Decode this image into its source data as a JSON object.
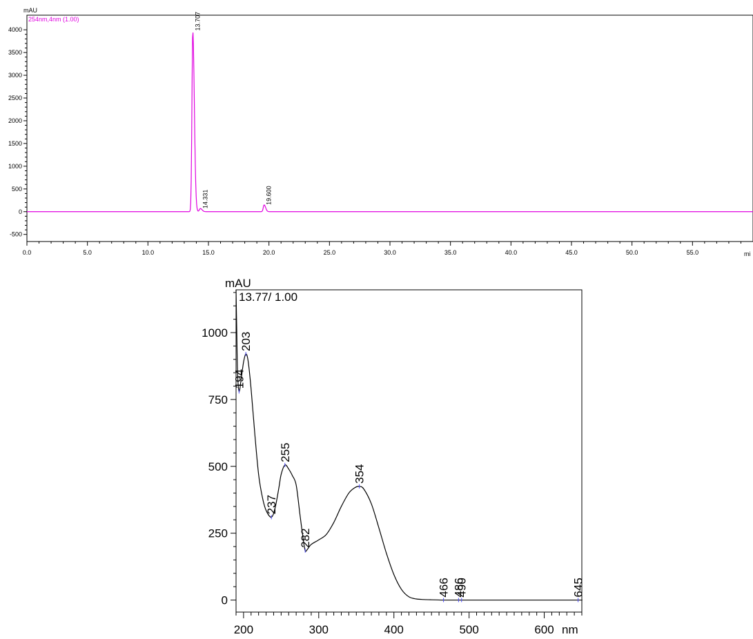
{
  "chart_data": [
    {
      "type": "line",
      "ylabel": "mAU",
      "xlabel": "mi",
      "channel_label": "254nm,4nm (1.00)",
      "xlim": [
        0,
        60
      ],
      "ylim": [
        -550,
        4200
      ],
      "x_ticks": [
        "0.0",
        "5.0",
        "10.0",
        "15.0",
        "20.0",
        "25.0",
        "30.0",
        "35.0",
        "40.0",
        "45.0",
        "50.0",
        "55.0"
      ],
      "x_tick_values": [
        0,
        5,
        10,
        15,
        20,
        25,
        30,
        35,
        40,
        45,
        50,
        55
      ],
      "y_ticks": [
        "-500",
        "0",
        "500",
        "1000",
        "1500",
        "2000",
        "2500",
        "3000",
        "3500",
        "4000"
      ],
      "y_tick_values": [
        -500,
        0,
        500,
        1000,
        1500,
        2000,
        2500,
        3000,
        3500,
        4000
      ],
      "line_color": "#e000e0",
      "baseline": 0,
      "peaks": [
        {
          "rt": 13.707,
          "label": "13.707",
          "height": 3980
        },
        {
          "rt": 14.331,
          "label": "14.331",
          "height": 70
        },
        {
          "rt": 19.6,
          "label": "19.600",
          "height": 150
        }
      ]
    },
    {
      "type": "line",
      "ylabel": "mAU",
      "xlabel": "nm",
      "annotation": "13.77/ 1.00",
      "xlim": [
        190,
        650
      ],
      "ylim": [
        -45,
        1160
      ],
      "x_ticks": [
        "200",
        "300",
        "400",
        "500",
        "600"
      ],
      "x_tick_values": [
        200,
        300,
        400,
        500,
        600
      ],
      "y_ticks": [
        "0",
        "250",
        "500",
        "750",
        "1000"
      ],
      "y_tick_values": [
        0,
        250,
        500,
        750,
        1000
      ],
      "line_color": "#000000",
      "x": [
        190,
        191,
        192,
        194,
        197,
        200,
        203,
        206,
        210,
        215,
        220,
        225,
        230,
        237,
        242,
        247,
        250,
        255,
        260,
        265,
        270,
        275,
        279,
        282,
        285,
        290,
        300,
        310,
        320,
        330,
        340,
        348,
        354,
        360,
        370,
        380,
        390,
        400,
        410,
        420,
        430,
        440,
        450,
        466,
        480,
        486,
        490,
        500,
        550,
        600,
        645,
        650
      ],
      "y": [
        1160,
        1000,
        850,
        780,
        830,
        890,
        920,
        895,
        790,
        620,
        470,
        385,
        335,
        310,
        345,
        420,
        470,
        505,
        490,
        465,
        430,
        320,
        235,
        185,
        190,
        208,
        225,
        245,
        290,
        350,
        400,
        420,
        425,
        415,
        360,
        270,
        175,
        95,
        40,
        12,
        4,
        2,
        1,
        0,
        0,
        0,
        0,
        0,
        0,
        0,
        0,
        0
      ],
      "peak_labels": [
        {
          "x": 194,
          "label": "194",
          "y": 780
        },
        {
          "x": 203,
          "label": "203",
          "y": 920
        },
        {
          "x": 237,
          "label": "237",
          "y": 310
        },
        {
          "x": 255,
          "label": "255",
          "y": 505
        },
        {
          "x": 282,
          "label": "282",
          "y": 185
        },
        {
          "x": 354,
          "label": "354",
          "y": 425
        },
        {
          "x": 466,
          "label": "466",
          "y": 0
        },
        {
          "x": 486,
          "label": "486",
          "y": 0
        },
        {
          "x": 490,
          "label": "490",
          "y": 0
        },
        {
          "x": 645,
          "label": "645",
          "y": 0
        }
      ]
    }
  ]
}
